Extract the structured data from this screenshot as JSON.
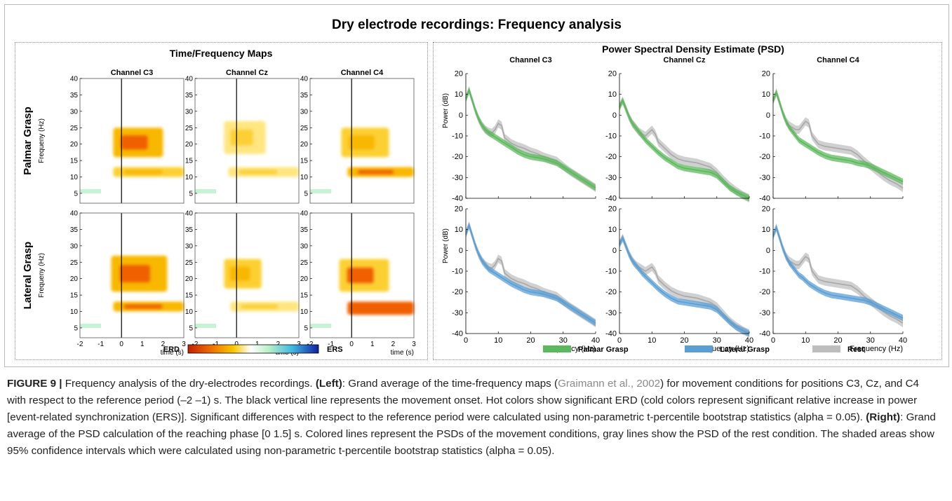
{
  "figure_title": "Dry electrode recordings: Frequency analysis",
  "left_panel": {
    "title": "Time/Frequency Maps",
    "channels": [
      "Channel C3",
      "Channel Cz",
      "Channel C4"
    ],
    "row_labels": [
      "Palmar Grasp",
      "Lateral Grasp"
    ],
    "ylabel": "Frequeny (Hz)",
    "xlabel": "time (s)",
    "x_ticks": [
      "-2",
      "-1",
      "0",
      "1",
      "2",
      "3"
    ],
    "y_ticks": [
      "5",
      "10",
      "15",
      "20",
      "25",
      "30",
      "35",
      "40"
    ],
    "colorbar": {
      "left_label": "ERD",
      "right_label": "ERS"
    },
    "colors": {
      "erd_strong": "#c42000",
      "erd_mid": "#f5a800",
      "erd_weak": "#ffe680",
      "neutral": "#ffffff",
      "ers_weak": "#b8f0c8",
      "ers_strong": "#1020a0"
    }
  },
  "chart_data": [
    {
      "type": "heatmap",
      "title": "Time/Frequency Maps",
      "xlabel": "time (s)",
      "ylabel": "Frequeny (Hz)",
      "xlim": [
        -2,
        3
      ],
      "ylim": [
        2,
        40
      ],
      "movement_onset": 0,
      "rows": [
        "Palmar Grasp",
        "Lateral Grasp"
      ],
      "columns": [
        "Channel C3",
        "Channel Cz",
        "Channel C4"
      ],
      "regions": [
        {
          "row": "Palmar Grasp",
          "channel": "Channel C3",
          "t": [
            -0.4,
            2.0
          ],
          "f": [
            16,
            25
          ],
          "level": 0.75
        },
        {
          "row": "Palmar Grasp",
          "channel": "Channel C3",
          "t": [
            -0.4,
            3.0
          ],
          "f": [
            10,
            13
          ],
          "level": 0.65
        },
        {
          "row": "Palmar Grasp",
          "channel": "Channel Cz",
          "t": [
            -0.6,
            1.4
          ],
          "f": [
            17,
            27
          ],
          "level": 0.5
        },
        {
          "row": "Palmar Grasp",
          "channel": "Channel Cz",
          "t": [
            -0.4,
            3.0
          ],
          "f": [
            10,
            13
          ],
          "level": 0.35
        },
        {
          "row": "Palmar Grasp",
          "channel": "Channel C4",
          "t": [
            -0.5,
            1.8
          ],
          "f": [
            16,
            25
          ],
          "level": 0.65
        },
        {
          "row": "Palmar Grasp",
          "channel": "Channel C4",
          "t": [
            -0.2,
            3.0
          ],
          "f": [
            10,
            13
          ],
          "level": 0.8
        },
        {
          "row": "Lateral Grasp",
          "channel": "Channel C3",
          "t": [
            -0.5,
            2.2
          ],
          "f": [
            16,
            27
          ],
          "level": 0.75
        },
        {
          "row": "Lateral Grasp",
          "channel": "Channel C3",
          "t": [
            -0.4,
            3.0
          ],
          "f": [
            10,
            13
          ],
          "level": 0.8
        },
        {
          "row": "Lateral Grasp",
          "channel": "Channel Cz",
          "t": [
            -0.6,
            1.2
          ],
          "f": [
            17,
            26
          ],
          "level": 0.6
        },
        {
          "row": "Lateral Grasp",
          "channel": "Channel Cz",
          "t": [
            -0.3,
            3.0
          ],
          "f": [
            10,
            13
          ],
          "level": 0.35
        },
        {
          "row": "Lateral Grasp",
          "channel": "Channel C4",
          "t": [
            -0.6,
            1.8
          ],
          "f": [
            16,
            26
          ],
          "level": 0.7
        },
        {
          "row": "Lateral Grasp",
          "channel": "Channel C4",
          "t": [
            -0.2,
            3.0
          ],
          "f": [
            9,
            13
          ],
          "level": 0.95
        }
      ]
    },
    {
      "type": "line",
      "title": "Power Spectral Density Estimate (PSD)",
      "xlabel": "Frequency (Hz)",
      "ylabel": "Power (dB)",
      "xlim": [
        0,
        40
      ],
      "ylim": [
        -40,
        20
      ],
      "x_ticks": [
        "0",
        "10",
        "20",
        "30",
        "40"
      ],
      "y_ticks": [
        "20",
        "10",
        "0",
        "-10",
        "-20",
        "-30",
        "-40"
      ],
      "channels": [
        "Channel C3",
        "Channel Cz",
        "Channel C4"
      ],
      "legend": [
        {
          "name": "Palmar Grasp",
          "color": "#5cb85c"
        },
        {
          "name": "Lateral Grasp",
          "color": "#5a9fd4"
        },
        {
          "name": "Rest",
          "color": "#bdbdbd"
        }
      ],
      "legend_position": "bottom",
      "x": [
        0,
        1,
        2,
        3,
        4,
        5,
        6,
        7,
        8,
        9,
        10,
        11,
        12,
        14,
        16,
        18,
        20,
        22,
        24,
        26,
        28,
        30,
        32,
        34,
        36,
        38,
        40
      ],
      "panels": [
        {
          "row": "Palmar Grasp",
          "channel": "Channel C3",
          "movement_color": "#5cb85c",
          "movement": [
            8,
            12,
            7,
            2,
            -2,
            -5,
            -7,
            -8.5,
            -9.5,
            -10.5,
            -11.5,
            -12.5,
            -13.5,
            -15.5,
            -17.5,
            -19,
            -20,
            -20.5,
            -21,
            -22,
            -23,
            -25,
            -27,
            -29,
            -31,
            -33,
            -35
          ],
          "rest": [
            8,
            12,
            7,
            2,
            -2,
            -5,
            -7,
            -8,
            -8.5,
            -7,
            -4,
            -5,
            -11,
            -13.5,
            -15,
            -16,
            -17.5,
            -18.5,
            -20,
            -21,
            -22,
            -24.5,
            -27,
            -29,
            -31,
            -33,
            -35
          ]
        },
        {
          "row": "Palmar Grasp",
          "channel": "Channel Cz",
          "movement_color": "#5cb85c",
          "movement": [
            4,
            7,
            3,
            -1,
            -4,
            -6,
            -8,
            -10,
            -12,
            -13.5,
            -15,
            -16.5,
            -18,
            -20.5,
            -22.5,
            -24.5,
            -25.5,
            -26,
            -26.5,
            -27,
            -27.5,
            -29,
            -32,
            -35,
            -37,
            -38.5,
            -40
          ],
          "rest": [
            4,
            7,
            3,
            -1,
            -4,
            -6,
            -8,
            -9,
            -10,
            -8.5,
            -7,
            -9,
            -13,
            -16,
            -19,
            -21,
            -22,
            -22.5,
            -23,
            -24,
            -25,
            -27.5,
            -31,
            -34,
            -36.5,
            -38.5,
            -40
          ]
        },
        {
          "row": "Palmar Grasp",
          "channel": "Channel C4",
          "movement_color": "#5cb85c",
          "movement": [
            7,
            11,
            6,
            1,
            -3,
            -6,
            -8,
            -10,
            -12,
            -13,
            -14,
            -15,
            -16,
            -18,
            -19.5,
            -20.5,
            -21,
            -21.5,
            -22,
            -23,
            -23.5,
            -24.5,
            -26,
            -27.5,
            -29,
            -30.5,
            -32
          ],
          "rest": [
            7,
            11,
            6,
            1,
            -3,
            -5,
            -6,
            -7,
            -7,
            -5,
            -3,
            -4,
            -10,
            -14,
            -15,
            -15.5,
            -16,
            -16.5,
            -17,
            -19,
            -22,
            -24.5,
            -27,
            -29.5,
            -31.5,
            -33,
            -35
          ]
        },
        {
          "row": "Lateral Grasp",
          "channel": "Channel C3",
          "movement_color": "#5a9fd4",
          "movement": [
            8,
            12,
            7,
            2,
            -2,
            -5,
            -7,
            -9,
            -10,
            -11,
            -12,
            -13,
            -14,
            -16,
            -17.5,
            -19,
            -20,
            -20.5,
            -21,
            -22,
            -23,
            -25,
            -27,
            -29,
            -31,
            -33,
            -35
          ],
          "rest": [
            8,
            12,
            7,
            2,
            -2,
            -5,
            -7,
            -8,
            -8.5,
            -7,
            -4,
            -5,
            -11,
            -13.5,
            -15,
            -16,
            -17.5,
            -18.5,
            -20,
            -21,
            -22,
            -24.5,
            -27,
            -29,
            -31,
            -33,
            -35
          ]
        },
        {
          "row": "Lateral Grasp",
          "channel": "Channel Cz",
          "movement_color": "#5a9fd4",
          "movement": [
            3,
            6,
            2,
            -2,
            -5,
            -7,
            -9,
            -11,
            -12.5,
            -14,
            -15.5,
            -17,
            -18.5,
            -21,
            -23,
            -24.5,
            -25,
            -25.5,
            -26,
            -26.5,
            -27,
            -28.5,
            -31.5,
            -34.5,
            -37,
            -38.5,
            -40
          ],
          "rest": [
            3,
            6,
            2,
            -2,
            -5,
            -7,
            -8,
            -9,
            -10,
            -9,
            -8,
            -10,
            -14,
            -17,
            -19.5,
            -21,
            -22,
            -22.5,
            -23,
            -24,
            -25,
            -27,
            -30.5,
            -34,
            -36.5,
            -38.5,
            -40
          ]
        },
        {
          "row": "Lateral Grasp",
          "channel": "Channel C4",
          "movement_color": "#5a9fd4",
          "movement": [
            7,
            11,
            6,
            1,
            -3,
            -6,
            -8,
            -10,
            -12,
            -13,
            -14.5,
            -16,
            -17,
            -19,
            -20.5,
            -21.5,
            -22,
            -22.5,
            -23,
            -23.5,
            -24,
            -25,
            -26.5,
            -28,
            -29.5,
            -31,
            -32.5
          ],
          "rest": [
            7,
            11,
            6,
            1,
            -3,
            -5,
            -6,
            -7,
            -7,
            -5,
            -3,
            -4,
            -10,
            -14,
            -15,
            -15.5,
            -16,
            -16.5,
            -17,
            -19,
            -22,
            -24.5,
            -27,
            -29.5,
            -31.5,
            -33,
            -35
          ]
        }
      ]
    }
  ],
  "right_panel": {
    "title": "Power Spectral Density Estimate (PSD)",
    "channels": [
      "Channel C3",
      "Channel Cz",
      "Channel C4"
    ],
    "ylabel": "Power (dB)",
    "xlabel": "Frequency (Hz)"
  },
  "caption": {
    "label": "FIGURE 9 |",
    "p1": " Frequency analysis of the dry-electrodes recordings. ",
    "left_label": "(Left)",
    "p2": ": Grand average of the time-frequency maps (",
    "ref": "Graimann et al., 2002",
    "p3": ") for movement conditions for positions C3, Cz, and C4 with respect to the reference period (–2 –1) s. The black vertical line represents the movement onset. Hot colors show significant ERD (cold colors represent significant relative increase in power [event-related synchronization (ERS)]. Significant differences with respect to the reference period were calculated using non-parametric t-percentile bootstrap statistics (alpha = 0.05). ",
    "right_label": "(Right)",
    "p4": ": Grand average of the PSD calculation of the reaching phase [0 1.5] s. Colored lines represent the PSDs of the movement conditions, gray lines show the PSD of the rest condition. The shaded areas show 95% confidence intervals which were calculated using non-parametric t-percentile bootstrap statistics (alpha = 0.05)."
  }
}
